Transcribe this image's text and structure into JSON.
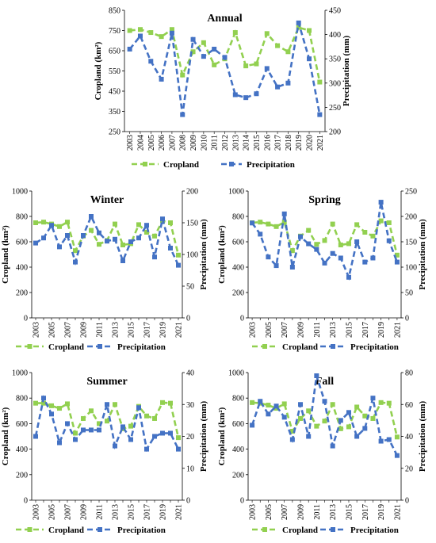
{
  "chart_data": [
    {
      "type": "line",
      "title": "Annual",
      "xlabel": "",
      "ylabel": "Cropland (km²)",
      "y2label": "Precipitation (mm)",
      "x": [
        "2003",
        "2004",
        "2005",
        "2006",
        "2007",
        "2008",
        "2009",
        "2010",
        "2011",
        "2012",
        "2013",
        "2014",
        "2015",
        "2016",
        "2017",
        "2018",
        "2019",
        "2020",
        "2021"
      ],
      "ylim": [
        250,
        850
      ],
      "y_ticks": [
        250,
        350,
        450,
        550,
        650,
        750,
        850
      ],
      "y2lim": [
        200,
        450
      ],
      "y2_ticks": [
        200,
        250,
        300,
        350,
        400,
        450
      ],
      "series": [
        {
          "name": "Cropland",
          "axis": "left",
          "color": "#92d050",
          "values": [
            750,
            755,
            740,
            720,
            755,
            530,
            645,
            690,
            580,
            610,
            740,
            575,
            585,
            735,
            675,
            645,
            765,
            750,
            495
          ]
        },
        {
          "name": "Precipitation",
          "axis": "right",
          "color": "#4472c4",
          "values": [
            370,
            397,
            345,
            308,
            403,
            235,
            390,
            355,
            370,
            353,
            276,
            270,
            278,
            330,
            292,
            300,
            424,
            350,
            235
          ]
        }
      ],
      "legend": "bottom"
    },
    {
      "type": "line",
      "title": "Winter",
      "xlabel": "",
      "ylabel": "Cropland (km²)",
      "y2label": "Precipitation (mm)",
      "x": [
        "2003",
        "2004",
        "2005",
        "2006",
        "2007",
        "2008",
        "2009",
        "2010",
        "2011",
        "2012",
        "2013",
        "2014",
        "2015",
        "2016",
        "2017",
        "2018",
        "2019",
        "2020",
        "2021"
      ],
      "ylim": [
        0,
        1000
      ],
      "y_ticks": [
        0,
        200,
        400,
        600,
        800,
        1000
      ],
      "y2lim": [
        0,
        200
      ],
      "y2_ticks": [
        0,
        50,
        100,
        150,
        200
      ],
      "series": [
        {
          "name": "Cropland",
          "axis": "left",
          "color": "#92d050",
          "values": [
            750,
            755,
            740,
            720,
            755,
            530,
            645,
            690,
            580,
            610,
            740,
            575,
            585,
            735,
            675,
            645,
            765,
            750,
            495
          ]
        },
        {
          "name": "Precipitation",
          "axis": "right",
          "color": "#4472c4",
          "values": [
            118,
            126,
            146,
            112,
            130,
            88,
            130,
            160,
            134,
            121,
            124,
            90,
            120,
            126,
            146,
            96,
            156,
            110,
            83
          ]
        }
      ],
      "legend": "bottom"
    },
    {
      "type": "line",
      "title": "Spring",
      "xlabel": "",
      "ylabel": "Cropland (km²)",
      "y2label": "Precipitation (mm)",
      "x": [
        "2003",
        "2004",
        "2005",
        "2006",
        "2007",
        "2008",
        "2009",
        "2010",
        "2011",
        "2012",
        "2013",
        "2014",
        "2015",
        "2016",
        "2017",
        "2018",
        "2019",
        "2020",
        "2021"
      ],
      "ylim": [
        0,
        1000
      ],
      "y_ticks": [
        0,
        200,
        400,
        600,
        800,
        1000
      ],
      "y2lim": [
        0,
        250
      ],
      "y2_ticks": [
        0,
        50,
        100,
        150,
        200,
        250
      ],
      "series": [
        {
          "name": "Cropland",
          "axis": "left",
          "color": "#92d050",
          "values": [
            750,
            755,
            740,
            720,
            755,
            530,
            645,
            690,
            580,
            610,
            740,
            575,
            585,
            735,
            675,
            645,
            765,
            750,
            495
          ]
        },
        {
          "name": "Precipitation",
          "axis": "right",
          "color": "#4472c4",
          "values": [
            187,
            165,
            120,
            103,
            205,
            100,
            160,
            146,
            135,
            108,
            127,
            118,
            80,
            150,
            110,
            118,
            228,
            152,
            110
          ]
        }
      ],
      "legend": "bottom"
    },
    {
      "type": "line",
      "title": "Summer",
      "xlabel": "",
      "ylabel": "Cropland (km²)",
      "y2label": "Precipitation (mm)",
      "x": [
        "2003",
        "2004",
        "2005",
        "2006",
        "2007",
        "2008",
        "2009",
        "2010",
        "2011",
        "2012",
        "2013",
        "2014",
        "2015",
        "2016",
        "2017",
        "2018",
        "2019",
        "2020",
        "2021"
      ],
      "ylim": [
        0,
        1000
      ],
      "y_ticks": [
        0,
        200,
        400,
        600,
        800,
        1000
      ],
      "y2lim": [
        0,
        40
      ],
      "y2_ticks": [
        0,
        10,
        20,
        30,
        40
      ],
      "series": [
        {
          "name": "Cropland",
          "axis": "left",
          "color": "#92d050",
          "values": [
            760,
            760,
            740,
            720,
            755,
            525,
            640,
            700,
            600,
            620,
            750,
            560,
            580,
            735,
            660,
            640,
            765,
            760,
            490
          ]
        },
        {
          "name": "Precipitation",
          "axis": "right",
          "color": "#4472c4",
          "values": [
            20,
            32,
            27,
            18,
            24,
            19,
            22,
            22,
            22,
            30,
            17,
            23,
            19,
            29,
            16,
            20,
            21,
            21,
            16
          ]
        }
      ],
      "legend": "bottom"
    },
    {
      "type": "line",
      "title": "Fall",
      "xlabel": "",
      "ylabel": "Cropland (km²)",
      "y2label": "Precipitation (mm)",
      "x": [
        "2003",
        "2004",
        "2005",
        "2006",
        "2007",
        "2008",
        "2009",
        "2010",
        "2011",
        "2012",
        "2013",
        "2014",
        "2015",
        "2016",
        "2017",
        "2018",
        "2019",
        "2020",
        "2021"
      ],
      "ylim": [
        0,
        1000
      ],
      "y_ticks": [
        0,
        200,
        400,
        600,
        800,
        1000
      ],
      "y2lim": [
        0,
        80
      ],
      "y2_ticks": [
        0,
        20,
        40,
        60,
        80
      ],
      "series": [
        {
          "name": "Cropland",
          "axis": "left",
          "color": "#92d050",
          "values": [
            765,
            760,
            745,
            720,
            755,
            540,
            640,
            700,
            580,
            620,
            750,
            560,
            575,
            730,
            660,
            640,
            765,
            760,
            495
          ]
        },
        {
          "name": "Precipitation",
          "axis": "right",
          "color": "#4472c4",
          "values": [
            47,
            62,
            54,
            59,
            52,
            38,
            60,
            40,
            78,
            62,
            34,
            50,
            55,
            40,
            45,
            64,
            37,
            38,
            28
          ]
        }
      ],
      "legend": "bottom"
    }
  ]
}
